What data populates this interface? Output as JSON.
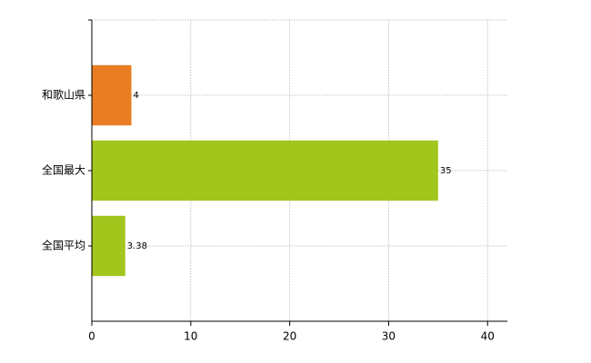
{
  "chart_data": {
    "type": "hbar",
    "categories": [
      "和歌山県",
      "全国最大",
      "全国平均"
    ],
    "values": [
      4,
      35,
      3.38
    ],
    "colors": [
      "#e87d24",
      "#a3c61c",
      "#a3c61c"
    ],
    "xlim": [
      0,
      42
    ],
    "xticks": [
      0,
      10,
      20,
      30,
      40
    ],
    "grid": true
  }
}
